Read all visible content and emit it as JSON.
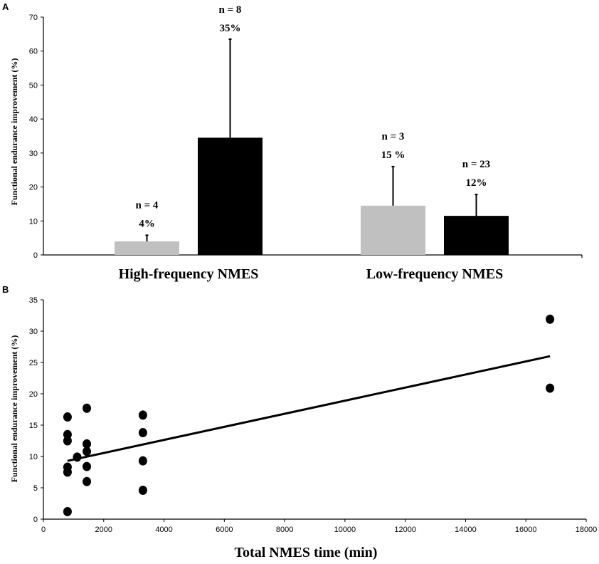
{
  "chart_data": [
    {
      "panel": "A",
      "type": "bar",
      "ylabel": "Functional endurance improvement (%)",
      "ylim": [
        0,
        70
      ],
      "yticks": [
        0,
        10,
        20,
        30,
        40,
        50,
        60,
        70
      ],
      "categories": [
        "High-frequency NMES",
        "Low-frequency NMES"
      ],
      "bar_colors": [
        "#c0c0c0",
        "#000000"
      ],
      "bars": [
        {
          "group": 0,
          "color": "#c0c0c0",
          "value": 4,
          "error": 1.8,
          "n_label": "n = 4",
          "pct_label": "4%"
        },
        {
          "group": 0,
          "color": "#000000",
          "value": 34.5,
          "error": 29,
          "n_label": "n = 8",
          "pct_label": "35%"
        },
        {
          "group": 1,
          "color": "#c0c0c0",
          "value": 14.5,
          "error": 11.5,
          "n_label": "n = 3",
          "pct_label": "15 %"
        },
        {
          "group": 1,
          "color": "#000000",
          "value": 11.5,
          "error": 6.3,
          "n_label": "n = 23",
          "pct_label": "12%"
        }
      ]
    },
    {
      "panel": "B",
      "type": "scatter",
      "xlabel": "Total NMES time (min)",
      "ylabel": "Functional endurance improvement (%)",
      "xlim": [
        0,
        18000
      ],
      "ylim": [
        0,
        35
      ],
      "xticks": [
        0,
        2000,
        4000,
        6000,
        8000,
        10000,
        12000,
        14000,
        16000,
        18000
      ],
      "yticks": [
        0,
        5,
        10,
        15,
        20,
        25,
        30,
        35
      ],
      "points": [
        [
          800,
          1.2
        ],
        [
          800,
          7.5
        ],
        [
          800,
          8.3
        ],
        [
          800,
          12.5
        ],
        [
          800,
          13.5
        ],
        [
          800,
          16.3
        ],
        [
          1120,
          9.9
        ],
        [
          1440,
          6.0
        ],
        [
          1440,
          8.4
        ],
        [
          1440,
          10.8
        ],
        [
          1440,
          12.0
        ],
        [
          1440,
          17.7
        ],
        [
          3300,
          4.6
        ],
        [
          3300,
          9.3
        ],
        [
          3300,
          13.8
        ],
        [
          3300,
          16.6
        ],
        [
          16800,
          20.9
        ],
        [
          16800,
          31.9
        ]
      ],
      "trendline": {
        "x": [
          800,
          16800
        ],
        "y": [
          9.3,
          26.0
        ]
      }
    }
  ]
}
